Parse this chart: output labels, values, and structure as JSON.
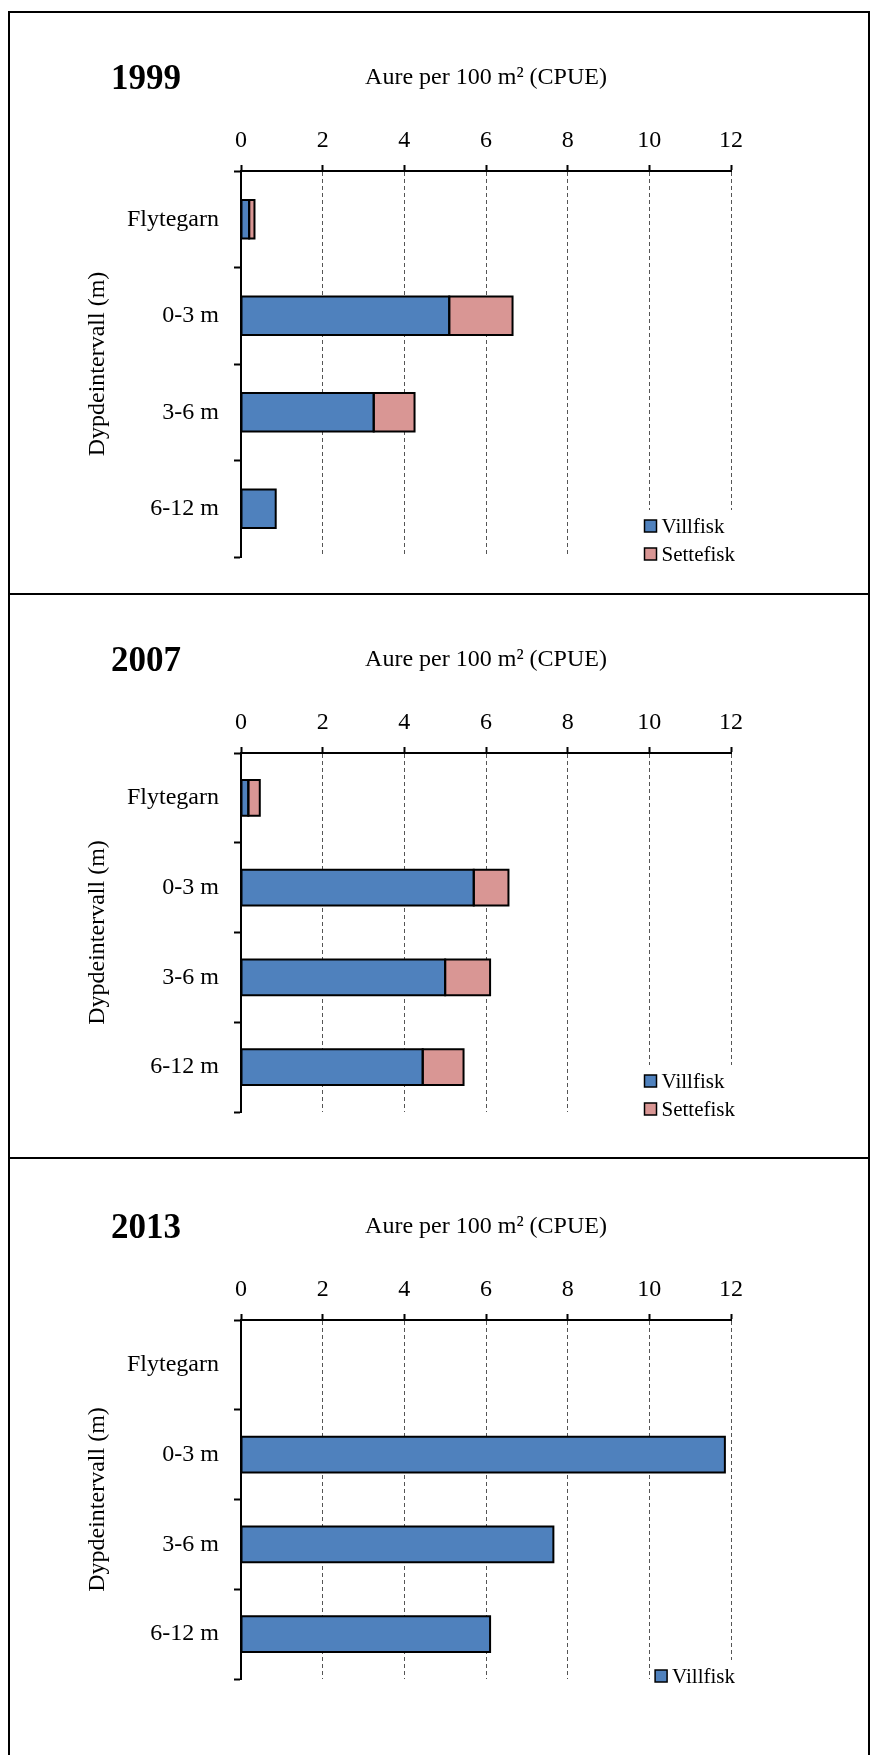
{
  "chart_data": [
    {
      "type": "bar",
      "title": "1999",
      "xlabel": "Aure per 100 m² (CPUE)",
      "ylabel": "Dypdeintervall (m)",
      "orientation": "horizontal",
      "stacked": true,
      "categories": [
        "Flytegarn",
        "0-3 m",
        "3-6 m",
        "6-12 m"
      ],
      "series": [
        {
          "name": "Villfisk",
          "color": "#4f81bd",
          "values": [
            0.2,
            5.1,
            3.25,
            0.85
          ]
        },
        {
          "name": "Settefisk",
          "color": "#d99694",
          "values": [
            0.13,
            1.55,
            1.0,
            null
          ]
        }
      ],
      "xlim": [
        0,
        12
      ],
      "xticks": [
        0,
        2,
        4,
        6,
        8,
        10,
        12
      ],
      "grid": "x",
      "legend": "bottom right"
    },
    {
      "type": "bar",
      "title": "2007",
      "xlabel": "Aure per 100 m² (CPUE)",
      "ylabel": "Dypdeintervall (m)",
      "orientation": "horizontal",
      "stacked": true,
      "categories": [
        "Flytegarn",
        "0-3 m",
        "3-6 m",
        "6-12 m"
      ],
      "series": [
        {
          "name": "Villfisk",
          "color": "#4f81bd",
          "values": [
            0.18,
            5.7,
            5.0,
            4.45
          ]
        },
        {
          "name": "Settefisk",
          "color": "#d99694",
          "values": [
            0.28,
            0.85,
            1.1,
            1.0
          ]
        }
      ],
      "xlim": [
        0,
        12
      ],
      "xticks": [
        0,
        2,
        4,
        6,
        8,
        10,
        12
      ],
      "grid": "x",
      "legend": "bottom right"
    },
    {
      "type": "bar",
      "title": "2013",
      "xlabel": "Aure per 100 m² (CPUE)",
      "ylabel": "Dypdeintervall (m)",
      "orientation": "horizontal",
      "stacked": true,
      "categories": [
        "Flytegarn",
        "0-3 m",
        "3-6 m",
        "6-12 m"
      ],
      "series": [
        {
          "name": "Villfisk",
          "color": "#4f81bd",
          "values": [
            null,
            11.85,
            7.65,
            6.1
          ]
        }
      ],
      "xlim": [
        0,
        12
      ],
      "xticks": [
        0,
        2,
        4,
        6,
        8,
        10,
        12
      ],
      "grid": "x",
      "legend": "bottom right"
    }
  ]
}
